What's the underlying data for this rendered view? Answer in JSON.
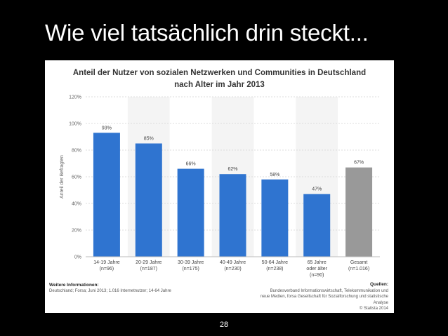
{
  "slide": {
    "title": "Wie viel tatsächlich drin steckt...",
    "page_number": "28"
  },
  "chart_data": {
    "type": "bar",
    "title": "Anteil der Nutzer von sozialen Netzwerken und Communities in Deutschland nach Alter im Jahr 2013",
    "title_lines": [
      "Anteil der Nutzer von sozialen Netzwerken und Communities in Deutschland",
      "nach Alter im Jahr 2013"
    ],
    "ylabel": "Anteil der Befragten",
    "xlabel": "",
    "ylim": [
      0,
      120
    ],
    "yticks": [
      0,
      20,
      40,
      60,
      80,
      100,
      120
    ],
    "ytick_labels": [
      "0%",
      "20%",
      "40%",
      "60%",
      "80%",
      "100%",
      "120%"
    ],
    "grid": true,
    "categories": [
      [
        "14-19 Jahre",
        "(n=96)"
      ],
      [
        "20-29 Jahre",
        "(n=187)"
      ],
      [
        "30-39 Jahre",
        "(n=175)"
      ],
      [
        "40-49 Jahre",
        "(n=230)"
      ],
      [
        "50-64 Jahre",
        "(n=238)"
      ],
      [
        "65 Jahre",
        "oder älter",
        "(n=90)"
      ],
      [
        "Gesamt",
        "(n=1.016)"
      ]
    ],
    "values": [
      93,
      85,
      66,
      62,
      58,
      47,
      67
    ],
    "value_labels": [
      "93%",
      "85%",
      "66%",
      "62%",
      "58%",
      "47%",
      "67%"
    ],
    "colors": [
      "#2f74d0",
      "#2f74d0",
      "#2f74d0",
      "#2f74d0",
      "#2f74d0",
      "#2f74d0",
      "#999999"
    ]
  },
  "footer": {
    "info_heading": "Weitere Informationen:",
    "info_text": "Deutschland; Forsa; Juni 2013; 1.016 Internetnutzer; 14-64 Jahre",
    "sources_heading": "Quellen:",
    "sources_lines": [
      "Bundesverband Informationswirtschaft, Telekommunikation und",
      "neue Medien, forsa Gesellschaft für Sozialforschung und statistische",
      "Analyse",
      "© Statista 2014"
    ]
  }
}
